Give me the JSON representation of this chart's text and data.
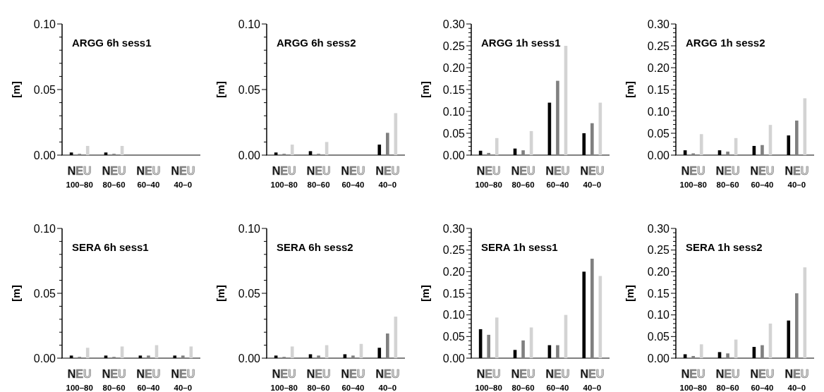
{
  "chart_data": [
    {
      "type": "bar",
      "title": "ARGG 6h sess1",
      "ylabel": "[m]",
      "categories": [
        "100–80",
        "80–60",
        "60–40",
        "40–0"
      ],
      "ylim": [
        0,
        0.1
      ],
      "yticks": [
        {
          "value": 0,
          "label": "0.00"
        },
        {
          "value": 0.01,
          "label": null
        },
        {
          "value": 0.02,
          "label": null
        },
        {
          "value": 0.03,
          "label": null
        },
        {
          "value": 0.04,
          "label": null
        },
        {
          "value": 0.05,
          "label": "0.05"
        },
        {
          "value": 0.06,
          "label": null
        },
        {
          "value": 0.07,
          "label": null
        },
        {
          "value": 0.08,
          "label": null
        },
        {
          "value": 0.09,
          "label": null
        },
        {
          "value": 0.1,
          "label": "0.10"
        }
      ],
      "grid": false,
      "series": [
        {
          "name": "N",
          "color": "#000000",
          "values": [
            0.002,
            0.002,
            null,
            null
          ]
        },
        {
          "name": "E",
          "color": "#808080",
          "values": [
            0.001,
            0.001,
            null,
            null
          ]
        },
        {
          "name": "U",
          "color": "#d3d3d3",
          "values": [
            0.007,
            0.007,
            null,
            null
          ]
        }
      ]
    },
    {
      "type": "bar",
      "title": "ARGG 6h sess2",
      "ylabel": "[m]",
      "categories": [
        "100–80",
        "80–60",
        "60–40",
        "40–0"
      ],
      "ylim": [
        0,
        0.1
      ],
      "yticks": [
        {
          "value": 0,
          "label": "0.00"
        },
        {
          "value": 0.01,
          "label": null
        },
        {
          "value": 0.02,
          "label": null
        },
        {
          "value": 0.03,
          "label": null
        },
        {
          "value": 0.04,
          "label": null
        },
        {
          "value": 0.05,
          "label": "0.05"
        },
        {
          "value": 0.06,
          "label": null
        },
        {
          "value": 0.07,
          "label": null
        },
        {
          "value": 0.08,
          "label": null
        },
        {
          "value": 0.09,
          "label": null
        },
        {
          "value": 0.1,
          "label": "0.10"
        }
      ],
      "grid": false,
      "series": [
        {
          "name": "N",
          "color": "#000000",
          "values": [
            0.002,
            0.003,
            null,
            0.008
          ]
        },
        {
          "name": "E",
          "color": "#808080",
          "values": [
            0.001,
            0.001,
            null,
            0.017
          ]
        },
        {
          "name": "U",
          "color": "#d3d3d3",
          "values": [
            0.008,
            0.01,
            null,
            0.032
          ]
        }
      ]
    },
    {
      "type": "bar",
      "title": "ARGG 1h sess1",
      "ylabel": "[m]",
      "categories": [
        "100–80",
        "80–60",
        "60–40",
        "40–0"
      ],
      "ylim": [
        0,
        0.3
      ],
      "yticks": [
        {
          "value": 0,
          "label": "0.00"
        },
        {
          "value": 0.01,
          "label": null
        },
        {
          "value": 0.02,
          "label": null
        },
        {
          "value": 0.03,
          "label": null
        },
        {
          "value": 0.04,
          "label": null
        },
        {
          "value": 0.05,
          "label": "0.05"
        },
        {
          "value": 0.06,
          "label": null
        },
        {
          "value": 0.07,
          "label": null
        },
        {
          "value": 0.08,
          "label": null
        },
        {
          "value": 0.09,
          "label": null
        },
        {
          "value": 0.1,
          "label": "0.10"
        },
        {
          "value": 0.11,
          "label": null
        },
        {
          "value": 0.12,
          "label": null
        },
        {
          "value": 0.13,
          "label": null
        },
        {
          "value": 0.14,
          "label": null
        },
        {
          "value": 0.15,
          "label": "0.15"
        },
        {
          "value": 0.16,
          "label": null
        },
        {
          "value": 0.17,
          "label": null
        },
        {
          "value": 0.18,
          "label": null
        },
        {
          "value": 0.19,
          "label": null
        },
        {
          "value": 0.2,
          "label": "0.20"
        },
        {
          "value": 0.21,
          "label": null
        },
        {
          "value": 0.22,
          "label": null
        },
        {
          "value": 0.23,
          "label": null
        },
        {
          "value": 0.24,
          "label": null
        },
        {
          "value": 0.25,
          "label": "0.25"
        },
        {
          "value": 0.26,
          "label": null
        },
        {
          "value": 0.27,
          "label": null
        },
        {
          "value": 0.28,
          "label": null
        },
        {
          "value": 0.29,
          "label": null
        },
        {
          "value": 0.3,
          "label": "0.30"
        }
      ],
      "grid": false,
      "series": [
        {
          "name": "N",
          "color": "#000000",
          "values": [
            0.01,
            0.015,
            0.12,
            0.05
          ]
        },
        {
          "name": "E",
          "color": "#808080",
          "values": [
            0.005,
            0.011,
            0.17,
            0.073
          ]
        },
        {
          "name": "U",
          "color": "#d3d3d3",
          "values": [
            0.039,
            0.055,
            0.25,
            0.12
          ]
        }
      ]
    },
    {
      "type": "bar",
      "title": "ARGG 1h sess2",
      "ylabel": "[m]",
      "categories": [
        "100–80",
        "80–60",
        "60–40",
        "40–0"
      ],
      "ylim": [
        0,
        0.3
      ],
      "yticks": [
        {
          "value": 0,
          "label": "0.00"
        },
        {
          "value": 0.01,
          "label": null
        },
        {
          "value": 0.02,
          "label": null
        },
        {
          "value": 0.03,
          "label": null
        },
        {
          "value": 0.04,
          "label": null
        },
        {
          "value": 0.05,
          "label": "0.05"
        },
        {
          "value": 0.06,
          "label": null
        },
        {
          "value": 0.07,
          "label": null
        },
        {
          "value": 0.08,
          "label": null
        },
        {
          "value": 0.09,
          "label": null
        },
        {
          "value": 0.1,
          "label": "0.10"
        },
        {
          "value": 0.11,
          "label": null
        },
        {
          "value": 0.12,
          "label": null
        },
        {
          "value": 0.13,
          "label": null
        },
        {
          "value": 0.14,
          "label": null
        },
        {
          "value": 0.15,
          "label": "0.15"
        },
        {
          "value": 0.16,
          "label": null
        },
        {
          "value": 0.17,
          "label": null
        },
        {
          "value": 0.18,
          "label": null
        },
        {
          "value": 0.19,
          "label": null
        },
        {
          "value": 0.2,
          "label": "0.20"
        },
        {
          "value": 0.21,
          "label": null
        },
        {
          "value": 0.22,
          "label": null
        },
        {
          "value": 0.23,
          "label": null
        },
        {
          "value": 0.24,
          "label": null
        },
        {
          "value": 0.25,
          "label": "0.25"
        },
        {
          "value": 0.26,
          "label": null
        },
        {
          "value": 0.27,
          "label": null
        },
        {
          "value": 0.28,
          "label": null
        },
        {
          "value": 0.29,
          "label": null
        },
        {
          "value": 0.3,
          "label": "0.30"
        }
      ],
      "grid": false,
      "series": [
        {
          "name": "N",
          "color": "#000000",
          "values": [
            0.011,
            0.011,
            0.021,
            0.045
          ]
        },
        {
          "name": "E",
          "color": "#808080",
          "values": [
            0.004,
            0.008,
            0.023,
            0.079
          ]
        },
        {
          "name": "U",
          "color": "#d3d3d3",
          "values": [
            0.048,
            0.039,
            0.069,
            0.13
          ]
        }
      ]
    },
    {
      "type": "bar",
      "title": "SERA 6h sess1",
      "ylabel": "[m]",
      "categories": [
        "100–80",
        "80–60",
        "60–40",
        "40–0"
      ],
      "ylim": [
        0,
        0.1
      ],
      "yticks": [
        {
          "value": 0,
          "label": "0.00"
        },
        {
          "value": 0.01,
          "label": null
        },
        {
          "value": 0.02,
          "label": null
        },
        {
          "value": 0.03,
          "label": null
        },
        {
          "value": 0.04,
          "label": null
        },
        {
          "value": 0.05,
          "label": "0.05"
        },
        {
          "value": 0.06,
          "label": null
        },
        {
          "value": 0.07,
          "label": null
        },
        {
          "value": 0.08,
          "label": null
        },
        {
          "value": 0.09,
          "label": null
        },
        {
          "value": 0.1,
          "label": "0.10"
        }
      ],
      "grid": false,
      "series": [
        {
          "name": "N",
          "color": "#000000",
          "values": [
            0.002,
            0.002,
            0.002,
            0.002
          ]
        },
        {
          "name": "E",
          "color": "#808080",
          "values": [
            0.001,
            0.001,
            0.002,
            0.002
          ]
        },
        {
          "name": "U",
          "color": "#d3d3d3",
          "values": [
            0.008,
            0.009,
            0.01,
            0.009
          ]
        }
      ]
    },
    {
      "type": "bar",
      "title": "SERA 6h sess2",
      "ylabel": "[m]",
      "categories": [
        "100–80",
        "80–60",
        "60–40",
        "40–0"
      ],
      "ylim": [
        0,
        0.1
      ],
      "yticks": [
        {
          "value": 0,
          "label": "0.00"
        },
        {
          "value": 0.01,
          "label": null
        },
        {
          "value": 0.02,
          "label": null
        },
        {
          "value": 0.03,
          "label": null
        },
        {
          "value": 0.04,
          "label": null
        },
        {
          "value": 0.05,
          "label": "0.05"
        },
        {
          "value": 0.06,
          "label": null
        },
        {
          "value": 0.07,
          "label": null
        },
        {
          "value": 0.08,
          "label": null
        },
        {
          "value": 0.09,
          "label": null
        },
        {
          "value": 0.1,
          "label": "0.10"
        }
      ],
      "grid": false,
      "series": [
        {
          "name": "N",
          "color": "#000000",
          "values": [
            0.002,
            0.003,
            0.003,
            0.008
          ]
        },
        {
          "name": "E",
          "color": "#808080",
          "values": [
            0.001,
            0.002,
            0.002,
            0.019
          ]
        },
        {
          "name": "U",
          "color": "#d3d3d3",
          "values": [
            0.009,
            0.01,
            0.011,
            0.032
          ]
        }
      ]
    },
    {
      "type": "bar",
      "title": "SERA 1h sess1",
      "ylabel": "[m]",
      "categories": [
        "100–80",
        "80–60",
        "60–40",
        "40–0"
      ],
      "ylim": [
        0,
        0.3
      ],
      "yticks": [
        {
          "value": 0,
          "label": "0.00"
        },
        {
          "value": 0.01,
          "label": null
        },
        {
          "value": 0.02,
          "label": null
        },
        {
          "value": 0.03,
          "label": null
        },
        {
          "value": 0.04,
          "label": null
        },
        {
          "value": 0.05,
          "label": "0.05"
        },
        {
          "value": 0.06,
          "label": null
        },
        {
          "value": 0.07,
          "label": null
        },
        {
          "value": 0.08,
          "label": null
        },
        {
          "value": 0.09,
          "label": null
        },
        {
          "value": 0.1,
          "label": "0.10"
        },
        {
          "value": 0.11,
          "label": null
        },
        {
          "value": 0.12,
          "label": null
        },
        {
          "value": 0.13,
          "label": null
        },
        {
          "value": 0.14,
          "label": null
        },
        {
          "value": 0.15,
          "label": "0.15"
        },
        {
          "value": 0.16,
          "label": null
        },
        {
          "value": 0.17,
          "label": null
        },
        {
          "value": 0.18,
          "label": null
        },
        {
          "value": 0.19,
          "label": null
        },
        {
          "value": 0.2,
          "label": "0.20"
        },
        {
          "value": 0.21,
          "label": null
        },
        {
          "value": 0.22,
          "label": null
        },
        {
          "value": 0.23,
          "label": null
        },
        {
          "value": 0.24,
          "label": null
        },
        {
          "value": 0.25,
          "label": "0.25"
        },
        {
          "value": 0.26,
          "label": null
        },
        {
          "value": 0.27,
          "label": null
        },
        {
          "value": 0.28,
          "label": null
        },
        {
          "value": 0.29,
          "label": null
        },
        {
          "value": 0.3,
          "label": "0.30"
        }
      ],
      "grid": false,
      "series": [
        {
          "name": "N",
          "color": "#000000",
          "values": [
            0.067,
            0.019,
            0.03,
            0.2
          ]
        },
        {
          "name": "E",
          "color": "#808080",
          "values": [
            0.054,
            0.041,
            0.03,
            0.23
          ]
        },
        {
          "name": "U",
          "color": "#d3d3d3",
          "values": [
            0.094,
            0.071,
            0.1,
            0.19
          ]
        }
      ]
    },
    {
      "type": "bar",
      "title": "SERA 1h sess2",
      "ylabel": "[m]",
      "categories": [
        "100–80",
        "80–60",
        "60–40",
        "40–0"
      ],
      "ylim": [
        0,
        0.3
      ],
      "yticks": [
        {
          "value": 0,
          "label": "0.00"
        },
        {
          "value": 0.01,
          "label": null
        },
        {
          "value": 0.02,
          "label": null
        },
        {
          "value": 0.03,
          "label": null
        },
        {
          "value": 0.04,
          "label": null
        },
        {
          "value": 0.05,
          "label": "0.05"
        },
        {
          "value": 0.06,
          "label": null
        },
        {
          "value": 0.07,
          "label": null
        },
        {
          "value": 0.08,
          "label": null
        },
        {
          "value": 0.09,
          "label": null
        },
        {
          "value": 0.1,
          "label": "0.10"
        },
        {
          "value": 0.11,
          "label": null
        },
        {
          "value": 0.12,
          "label": null
        },
        {
          "value": 0.13,
          "label": null
        },
        {
          "value": 0.14,
          "label": null
        },
        {
          "value": 0.15,
          "label": "0.15"
        },
        {
          "value": 0.16,
          "label": null
        },
        {
          "value": 0.17,
          "label": null
        },
        {
          "value": 0.18,
          "label": null
        },
        {
          "value": 0.19,
          "label": null
        },
        {
          "value": 0.2,
          "label": "0.20"
        },
        {
          "value": 0.21,
          "label": null
        },
        {
          "value": 0.22,
          "label": null
        },
        {
          "value": 0.23,
          "label": null
        },
        {
          "value": 0.24,
          "label": null
        },
        {
          "value": 0.25,
          "label": "0.25"
        },
        {
          "value": 0.26,
          "label": null
        },
        {
          "value": 0.27,
          "label": null
        },
        {
          "value": 0.28,
          "label": null
        },
        {
          "value": 0.29,
          "label": null
        },
        {
          "value": 0.3,
          "label": "0.30"
        }
      ],
      "grid": false,
      "series": [
        {
          "name": "N",
          "color": "#000000",
          "values": [
            0.009,
            0.014,
            0.026,
            0.087
          ]
        },
        {
          "name": "E",
          "color": "#808080",
          "values": [
            0.005,
            0.011,
            0.03,
            0.15
          ]
        },
        {
          "name": "U",
          "color": "#d3d3d3",
          "values": [
            0.032,
            0.043,
            0.08,
            0.21
          ]
        }
      ]
    }
  ]
}
